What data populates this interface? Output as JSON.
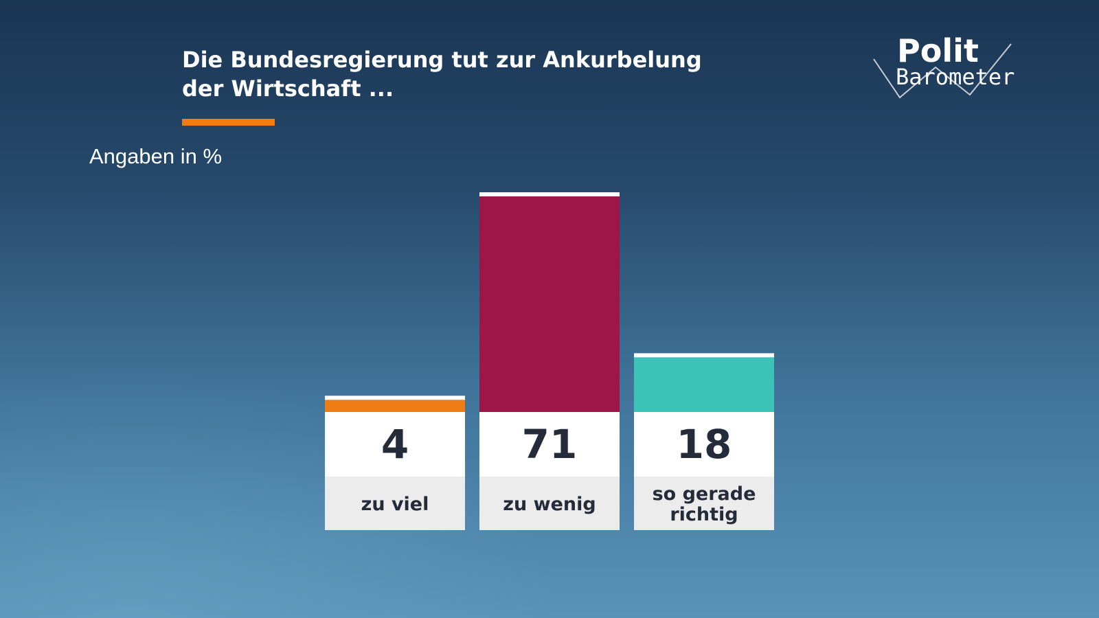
{
  "header": {
    "title": "Die Bundesregierung tut zur Ankurbelung\nder Wirtschaft ...",
    "unit_label": "Angaben in %"
  },
  "logo": {
    "line1": "Polit",
    "line2": "Barometer"
  },
  "colors": {
    "accent": "#f07c14",
    "value_box": "#ffffff",
    "label_box": "#ececec",
    "text_dark": "#262b3a"
  },
  "chart_data": {
    "type": "bar",
    "title": "Die Bundesregierung tut zur Ankurbelung der Wirtschaft ...",
    "unit": "Angaben in %",
    "categories": [
      "zu viel",
      "zu wenig",
      "so gerade richtig"
    ],
    "values": [
      4,
      71,
      18
    ],
    "value_labels": [
      "4",
      "71",
      "18"
    ],
    "category_lines": [
      [
        "zu viel"
      ],
      [
        "zu wenig"
      ],
      [
        "so gerade",
        "richtig"
      ]
    ],
    "colors": [
      "#f07c14",
      "#9c1647",
      "#3cc3b7"
    ],
    "ylim": [
      0,
      71
    ],
    "grid": false,
    "legend": "none"
  }
}
